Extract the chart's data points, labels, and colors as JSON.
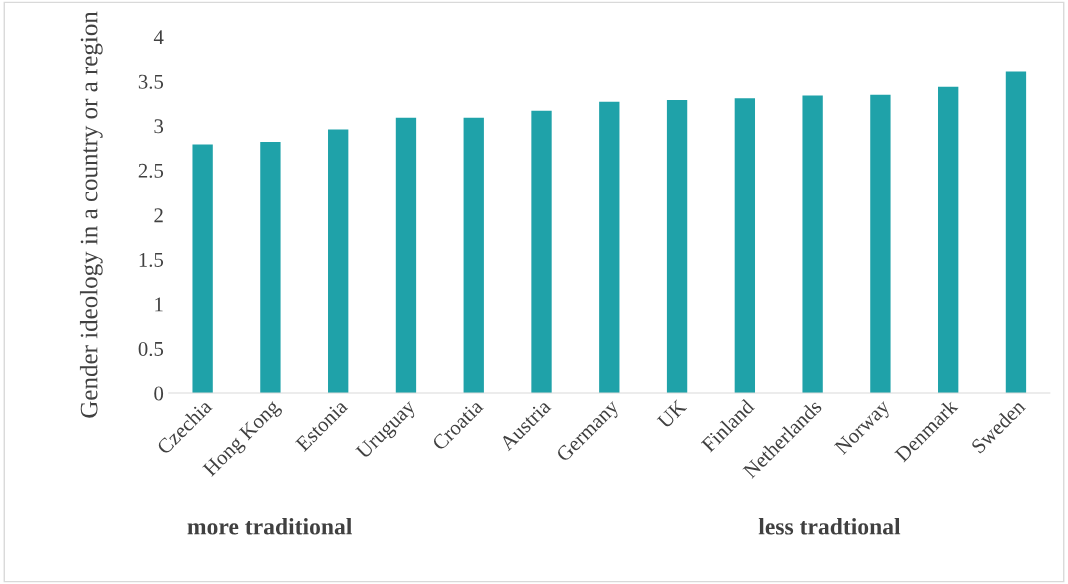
{
  "chart_data": {
    "type": "bar",
    "ylabel": "Gender ideology in a country or a region",
    "categories": [
      "Czechia",
      "Hong Kong",
      "Estonia",
      "Uruguay",
      "Croatia",
      "Austria",
      "Germany",
      "UK",
      "Finland",
      "Netherlands",
      "Norway",
      "Denmark",
      "Sweden"
    ],
    "values": [
      2.79,
      2.82,
      2.96,
      3.09,
      3.09,
      3.17,
      3.27,
      3.29,
      3.31,
      3.34,
      3.35,
      3.44,
      3.61
    ],
    "color": "#1fa2a9",
    "ylim": [
      0,
      4
    ],
    "yticks": [
      0,
      0.5,
      1,
      1.5,
      2,
      2.5,
      3,
      3.5,
      4
    ],
    "grid": false,
    "annotations": [
      "more traditional",
      "less tradtional"
    ]
  }
}
